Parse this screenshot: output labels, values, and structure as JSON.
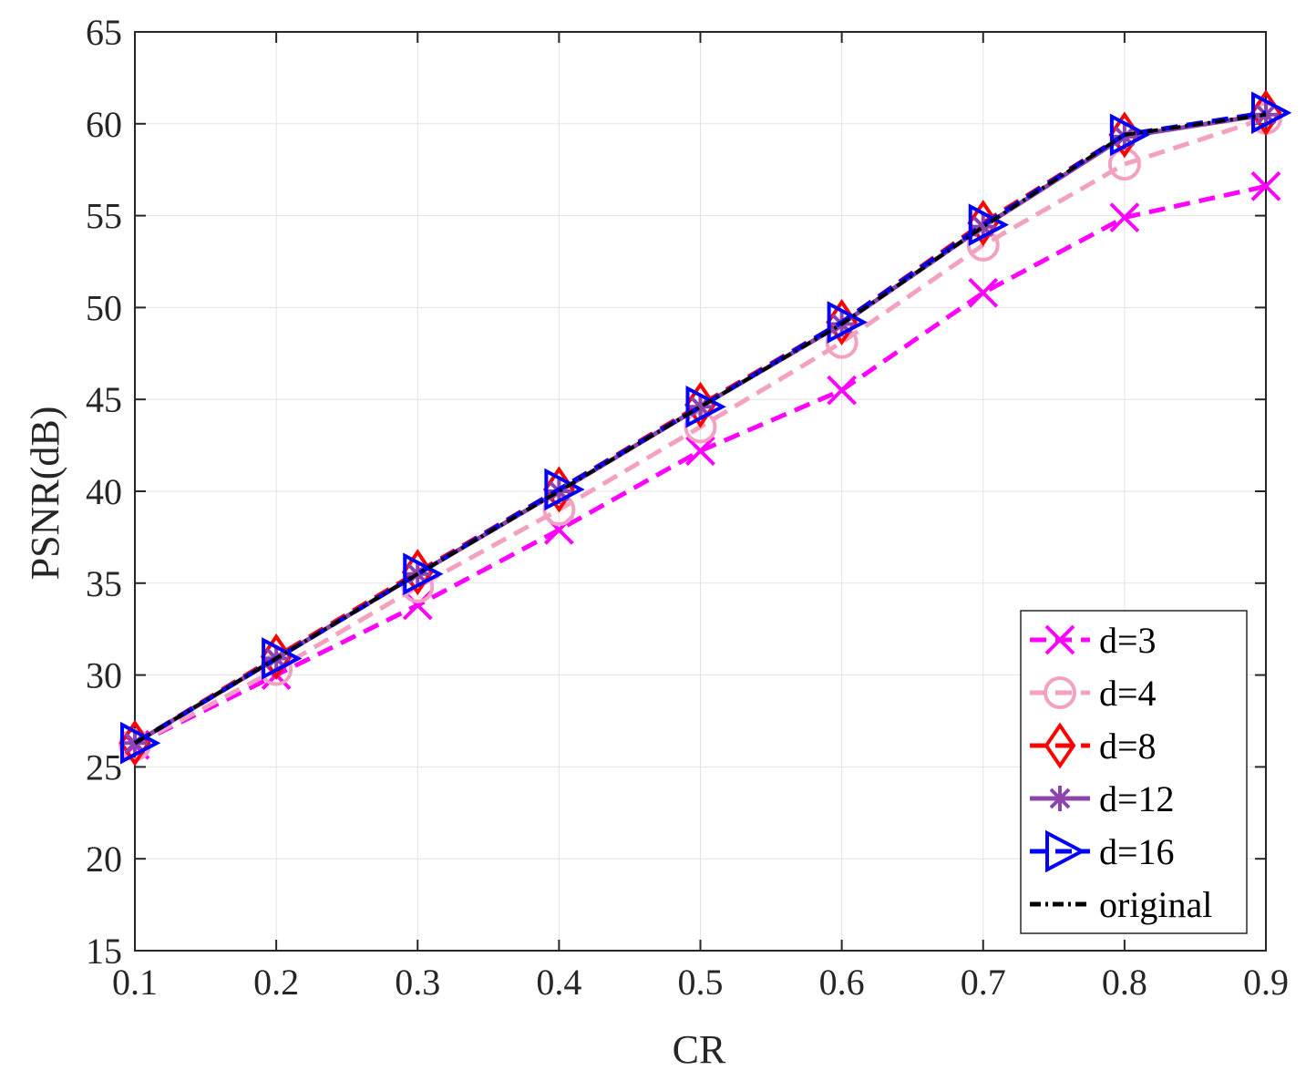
{
  "chart_data": {
    "type": "line",
    "xlabel": "CR",
    "ylabel": "PSNR(dB)",
    "xlim": [
      0.1,
      0.9
    ],
    "ylim": [
      15,
      65
    ],
    "xticks": [
      "0.1",
      "0.2",
      "0.3",
      "0.4",
      "0.5",
      "0.6",
      "0.7",
      "0.8",
      "0.9"
    ],
    "yticks": [
      "15",
      "20",
      "25",
      "30",
      "35",
      "40",
      "45",
      "50",
      "55",
      "60",
      "65"
    ],
    "grid": true,
    "legend_position": "bottom-right",
    "x": [
      0.1,
      0.2,
      0.3,
      0.4,
      0.5,
      0.6,
      0.7,
      0.8,
      0.9
    ],
    "series": [
      {
        "name": "d=3",
        "marker": "x",
        "line": "dashed",
        "color": "#ff00ff",
        "values": [
          26.2,
          30.0,
          33.8,
          37.9,
          42.2,
          45.5,
          50.8,
          54.9,
          56.6
        ]
      },
      {
        "name": "d=4",
        "marker": "circle",
        "line": "dashed",
        "color": "#f4a0c0",
        "values": [
          26.2,
          30.3,
          34.8,
          39.0,
          43.5,
          48.1,
          53.4,
          57.8,
          60.3
        ]
      },
      {
        "name": "d=8",
        "marker": "diamond",
        "line": "dashed",
        "color": "#ff0000",
        "values": [
          26.3,
          31.0,
          35.6,
          40.1,
          44.7,
          49.2,
          54.6,
          59.4,
          60.6
        ]
      },
      {
        "name": "d=12",
        "marker": "asterisk",
        "line": "solid",
        "color": "#8e44ad",
        "values": [
          26.3,
          30.9,
          35.5,
          40.0,
          44.6,
          49.1,
          54.4,
          59.3,
          60.5
        ]
      },
      {
        "name": "d=16",
        "marker": "triangle-right",
        "line": "dashed",
        "color": "#0000ff",
        "values": [
          26.3,
          30.9,
          35.5,
          40.1,
          44.6,
          49.2,
          54.5,
          59.4,
          60.6
        ]
      },
      {
        "name": "original",
        "marker": "none",
        "line": "dashdot",
        "color": "#000000",
        "values": [
          26.3,
          30.9,
          35.5,
          40.0,
          44.6,
          49.1,
          54.4,
          59.4,
          60.5
        ]
      }
    ]
  }
}
